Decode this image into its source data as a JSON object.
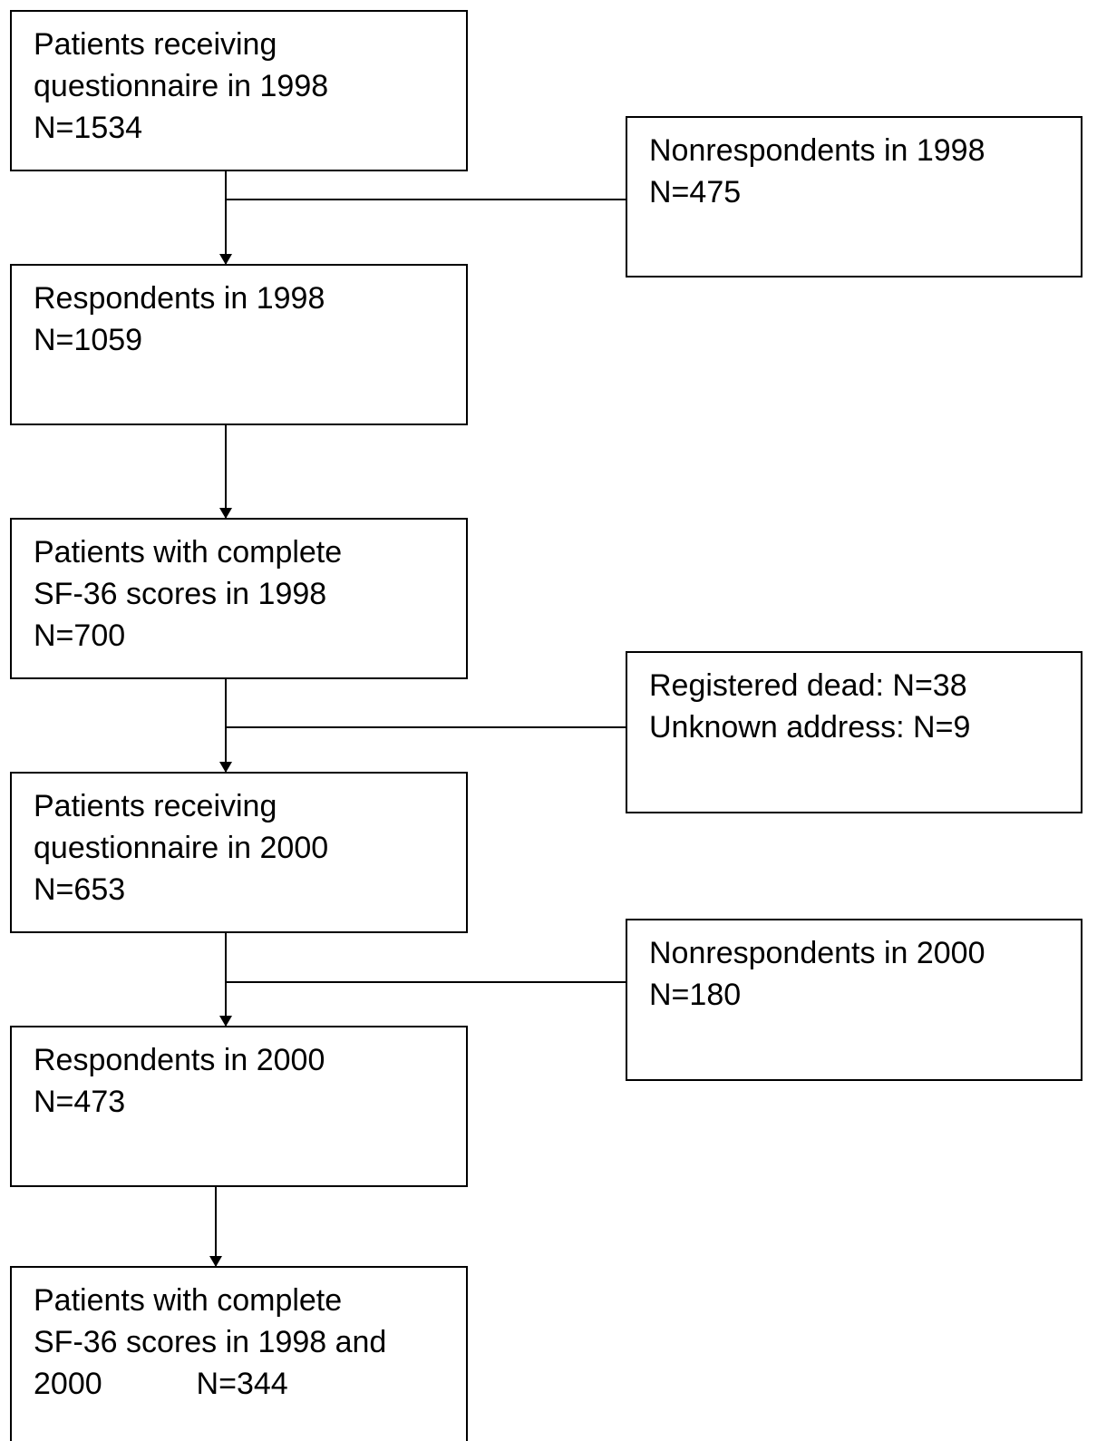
{
  "nodes": [
    {
      "lines": [
        "Patients receiving",
        "questionnaire in 1998",
        "N=1534"
      ]
    },
    {
      "lines": [
        "Nonrespondents in 1998",
        "N=475"
      ]
    },
    {
      "lines": [
        "Respondents in 1998",
        "N=1059"
      ]
    },
    {
      "lines": [
        "Patients with complete",
        "SF-36 scores in 1998",
        "N=700"
      ]
    },
    {
      "lines": [
        "Registered dead: N=38",
        "Unknown address: N=9"
      ]
    },
    {
      "lines": [
        "Patients receiving",
        "questionnaire in 2000",
        "N=653"
      ]
    },
    {
      "lines": [
        "Nonrespondents in 2000",
        "N=180"
      ]
    },
    {
      "lines": [
        "Respondents in 2000",
        "N=473"
      ]
    },
    {
      "lines": [
        "Patients with complete",
        "SF-36 scores in 1998 and",
        "2000           N=344"
      ]
    }
  ]
}
